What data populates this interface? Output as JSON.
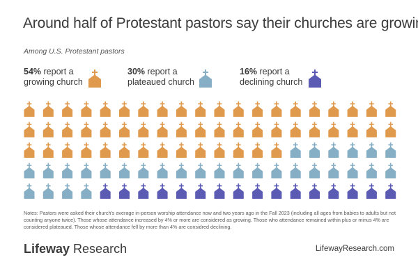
{
  "title": "Around half of Protestant pastors say their churches are growing",
  "subtitle": "Among U.S. Protestant pastors",
  "legend": [
    {
      "pct": "54%",
      "line1": "report a",
      "line2": "growing church",
      "color": "#e09a4e"
    },
    {
      "pct": "30%",
      "line1": "report a",
      "line2": "plateaued church",
      "color": "#86aec4"
    },
    {
      "pct": "16%",
      "line1": "report a",
      "line2": "declining church",
      "color": "#5b5bb4"
    }
  ],
  "notes": "Notes: Pastors were asked their church's average in-person worship attendance now and two years ago in the Fall 2023 (including all ages from babies to adults but not counting anyone twice). Those whose attendance increased by 4% or more are considered as growing. Those who attendance remained within plus or minus 4% are considered plateaued. Those whose attendance fell by more than 4% are considred declining.",
  "logo": {
    "brand": "Lifeway",
    "product": "Research"
  },
  "website": "LifewayResearch.com",
  "chart_data": {
    "type": "waffle",
    "rows": 5,
    "columns": 20,
    "categories": [
      "growing church",
      "plateaued church",
      "declining church"
    ],
    "values": [
      54,
      30,
      16
    ],
    "colors": [
      "#e09a4e",
      "#86aec4",
      "#5b5bb4"
    ]
  }
}
